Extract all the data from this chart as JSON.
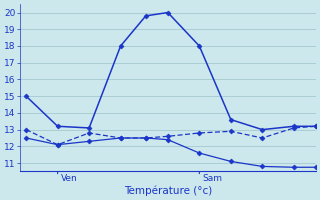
{
  "background_color": "#cce8ec",
  "grid_color": "#aacdd4",
  "line_color": "#1a35c8",
  "title": "Température (°c)",
  "ylim": [
    10.5,
    20.5
  ],
  "yticks": [
    11,
    12,
    13,
    14,
    15,
    16,
    17,
    18,
    19,
    20
  ],
  "xlim": [
    -0.2,
    9.2
  ],
  "ven_x": 1.0,
  "sam_x": 5.5,
  "series1_x": [
    0,
    1,
    2,
    3,
    3.8,
    4.5,
    5.5,
    6.5,
    7.5,
    8.5,
    9.2
  ],
  "series1_y": [
    15.0,
    13.2,
    13.1,
    18.0,
    19.8,
    20.0,
    18.0,
    13.6,
    13.0,
    13.2,
    13.2
  ],
  "series2_x": [
    0,
    1,
    2,
    3,
    3.8,
    4.5,
    5.5,
    6.5,
    7.5,
    8.5,
    9.2
  ],
  "series2_y": [
    13.0,
    12.1,
    12.8,
    12.5,
    12.5,
    12.6,
    12.8,
    12.9,
    12.5,
    13.1,
    13.2
  ],
  "series3_x": [
    0,
    1,
    2,
    3,
    3.8,
    4.5,
    5.5,
    6.5,
    7.5,
    8.5,
    9.2
  ],
  "series3_y": [
    12.5,
    12.1,
    12.3,
    12.5,
    12.5,
    12.4,
    11.6,
    11.1,
    10.8,
    10.75,
    10.75
  ]
}
